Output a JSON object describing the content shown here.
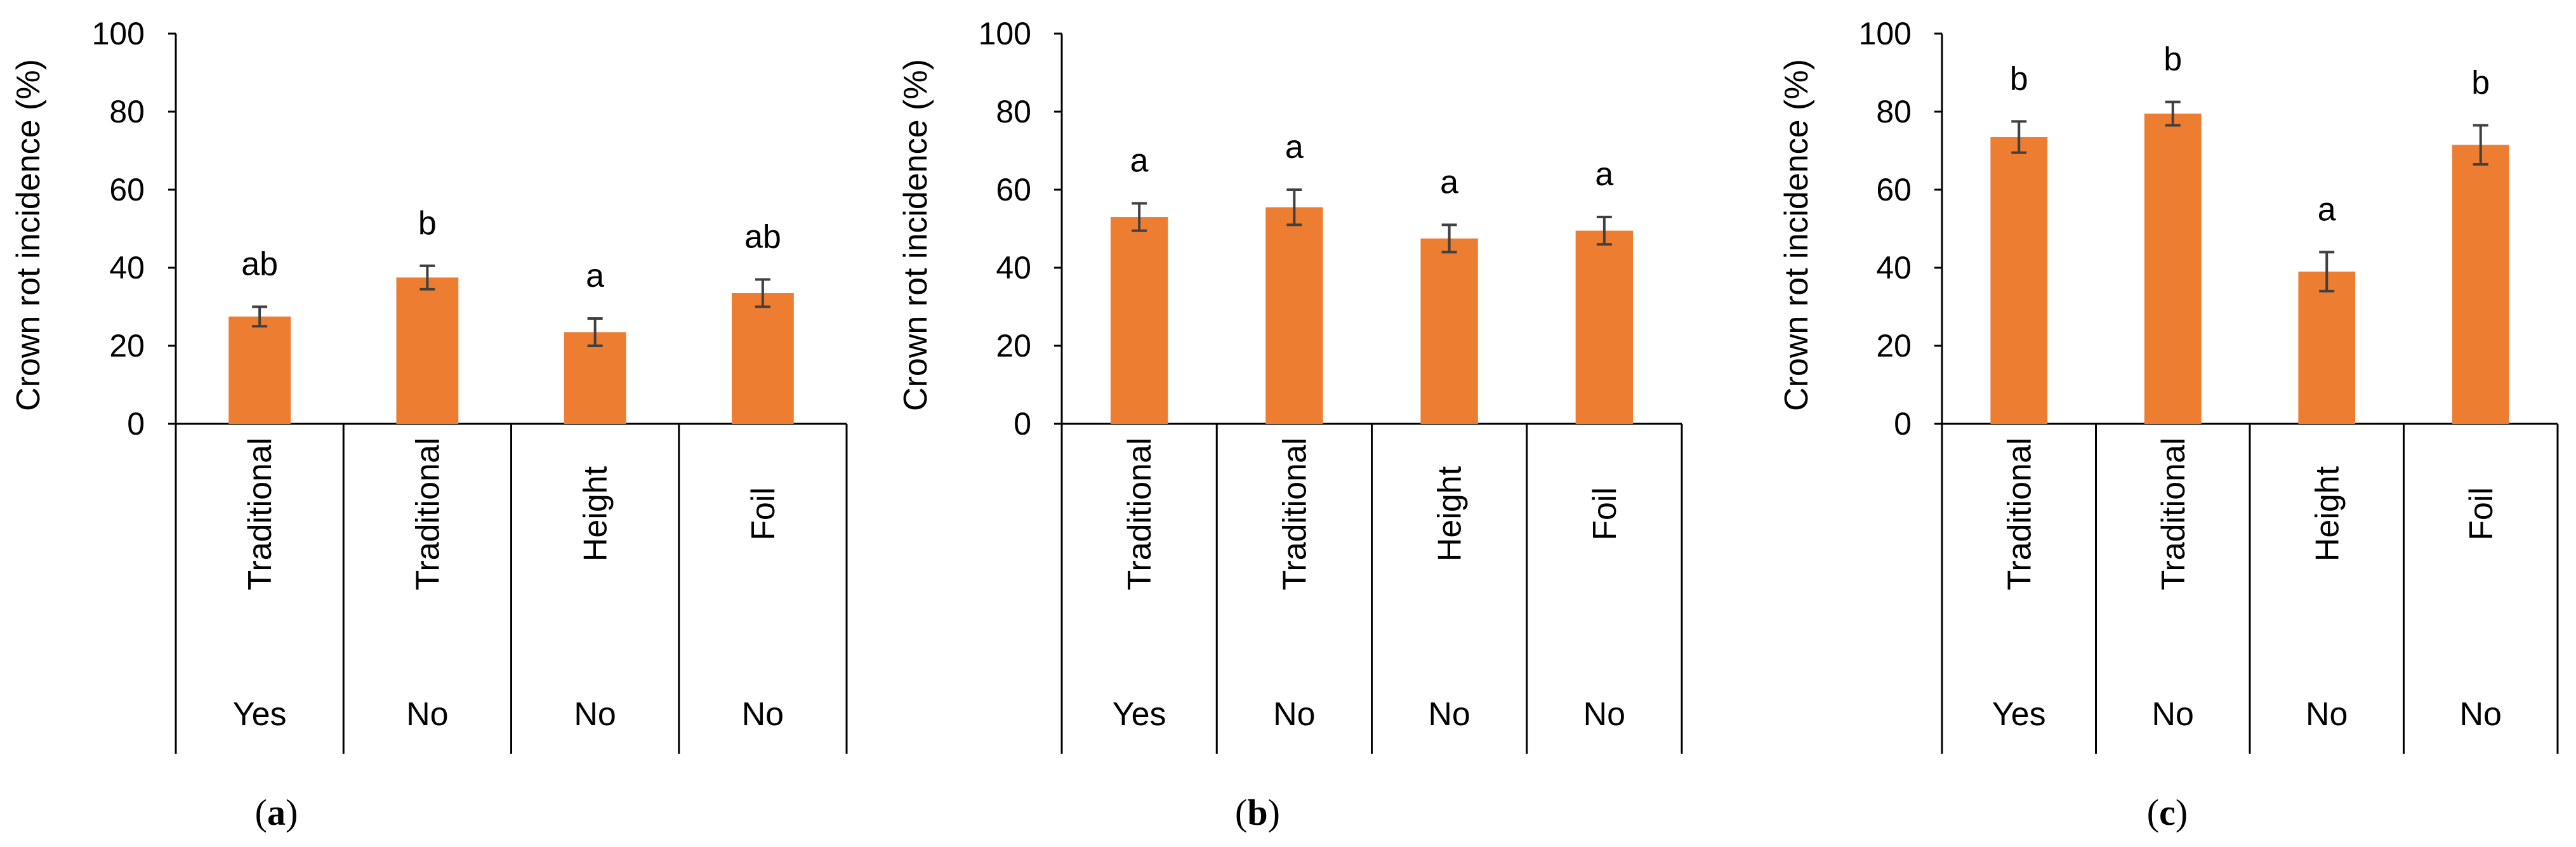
{
  "chart_data": [
    {
      "type": "bar",
      "panel_label": "a",
      "ylabel": "Crown rot  incidence (%)",
      "ylim": [
        0,
        100
      ],
      "yticks": [
        0,
        20,
        40,
        60,
        80,
        100
      ],
      "categories": [
        "Traditional",
        "Traditional",
        "Height",
        "Foil"
      ],
      "group_labels": [
        "Yes",
        "No",
        "No",
        "No"
      ],
      "values": [
        27.5,
        37.5,
        23.5,
        33.5
      ],
      "errors": [
        2.5,
        3,
        3.5,
        3.5
      ],
      "significance": [
        "ab",
        "b",
        "a",
        "ab"
      ],
      "bar_color": "#ED7D31",
      "error_color": "#404040"
    },
    {
      "type": "bar",
      "panel_label": "b",
      "ylabel": "Crown rot incidence (%)",
      "ylim": [
        0,
        100
      ],
      "yticks": [
        0,
        20,
        40,
        60,
        80,
        100
      ],
      "categories": [
        "Traditional",
        "Traditional",
        "Height",
        "Foil"
      ],
      "group_labels": [
        "Yes",
        "No",
        "No",
        "No"
      ],
      "values": [
        53,
        55.5,
        47.5,
        49.5
      ],
      "errors": [
        3.5,
        4.5,
        3.5,
        3.5
      ],
      "significance": [
        "a",
        "a",
        "a",
        "a"
      ],
      "bar_color": "#ED7D31",
      "error_color": "#404040"
    },
    {
      "type": "bar",
      "panel_label": "c",
      "ylabel": "Crown rot incidence (%)",
      "ylim": [
        0,
        100
      ],
      "yticks": [
        0,
        20,
        40,
        60,
        80,
        100
      ],
      "categories": [
        "Traditional",
        "Traditional",
        "Height",
        "Foil"
      ],
      "group_labels": [
        "Yes",
        "No",
        "No",
        "No"
      ],
      "values": [
        73.5,
        79.5,
        39,
        71.5
      ],
      "errors": [
        4,
        3,
        5,
        5
      ],
      "significance": [
        "b",
        "b",
        "a",
        "b"
      ],
      "bar_color": "#ED7D31",
      "error_color": "#404040"
    }
  ]
}
